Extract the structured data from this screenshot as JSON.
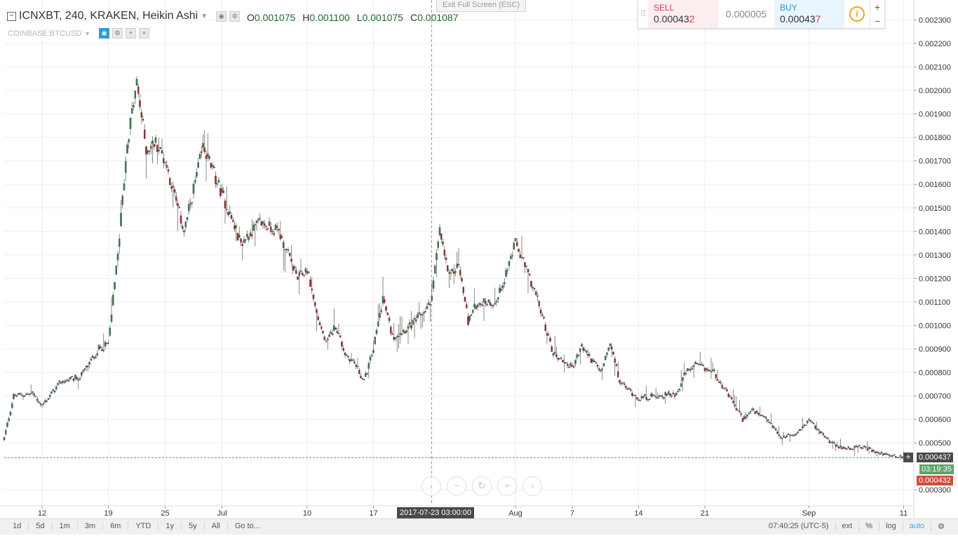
{
  "header": {
    "symbol_line": "ICNXBT, 240, KRAKEN, Heikin Ashi",
    "ohlc": {
      "o_label": "O",
      "o": "0.001075",
      "h_label": "H",
      "h": "0.001100",
      "l_label": "L",
      "l": "0.001075",
      "c_label": "C",
      "c": "0.001087"
    },
    "compare_symbol": "COINBASE:BTCUSD",
    "exit_fullscreen": "Exit Full Screen (ESC)"
  },
  "trade_panel": {
    "sell_label": "SELL",
    "sell_price_main": "0.00043",
    "sell_price_last": "2",
    "spread": "0.000005",
    "buy_label": "BUY",
    "buy_price_main": "0.00043",
    "buy_price_last": "7",
    "info_glyph": "i",
    "plus": "+",
    "minus": "−"
  },
  "price_tags": {
    "current_line": "0.000437",
    "countdown": "03:19:35",
    "bid": "0.000432"
  },
  "crosshair": {
    "x_label": "2017-07-23 03:00:00"
  },
  "bottom_bar": {
    "ranges": [
      "1d",
      "5d",
      "1m",
      "3m",
      "6m",
      "YTD",
      "1y",
      "5y",
      "All",
      "Go to..."
    ],
    "time": "07:40:25 (UTC-5)",
    "options": [
      "ext",
      "%",
      "log",
      "auto"
    ]
  },
  "nav_buttons": [
    "‹",
    "−",
    "↻",
    "+",
    "›"
  ],
  "colors": {
    "up": "#3a7d4a",
    "down": "#a52a2a",
    "grid": "#eeeeee",
    "accent": "#3daee9"
  },
  "chart_data": {
    "type": "candlestick",
    "title": "ICNXBT, 240, KRAKEN, Heikin Ashi",
    "xlabel": "",
    "ylabel": "",
    "ylim": [
      0.000235,
      0.002385
    ],
    "y_tick_labels": [
      "0.002300",
      "0.002200",
      "0.002100",
      "0.002000",
      "0.001900",
      "0.001800",
      "0.001700",
      "0.001600",
      "0.001500",
      "0.001400",
      "0.001300",
      "0.001200",
      "0.001100",
      "0.001000",
      "0.000900",
      "0.000800",
      "0.000700",
      "0.000600",
      "0.000500",
      "0.000300"
    ],
    "x_tick_labels": [
      "12",
      "19",
      "25",
      "Jul",
      "10",
      "17",
      "Aug",
      "7",
      "14",
      "21",
      "Sep",
      "11"
    ],
    "x_tick_dates": [
      "2017-06-12",
      "2017-06-19",
      "2017-06-25",
      "2017-07-01",
      "2017-07-10",
      "2017-07-17",
      "2017-08-01",
      "2017-08-07",
      "2017-08-14",
      "2017-08-21",
      "2017-09-01",
      "2017-09-11"
    ],
    "x_range": [
      "2017-06-08",
      "2017-09-12"
    ],
    "grid": true,
    "series": [
      {
        "key_points": [
          {
            "date": "2017-06-08",
            "close": 0.00052
          },
          {
            "date": "2017-06-09",
            "close": 0.0007
          },
          {
            "date": "2017-06-11",
            "close": 0.00071
          },
          {
            "date": "2017-06-12",
            "close": 0.00066
          },
          {
            "date": "2017-06-14",
            "close": 0.00076
          },
          {
            "date": "2017-06-16",
            "close": 0.00078
          },
          {
            "date": "2017-06-18",
            "close": 0.0009
          },
          {
            "date": "2017-06-19",
            "close": 0.00092
          },
          {
            "date": "2017-06-20",
            "close": 0.0013
          },
          {
            "date": "2017-06-21",
            "close": 0.00178
          },
          {
            "date": "2017-06-22",
            "close": 0.00203
          },
          {
            "date": "2017-06-23",
            "close": 0.00175
          },
          {
            "date": "2017-06-24",
            "close": 0.00178
          },
          {
            "date": "2017-06-25",
            "close": 0.0017
          },
          {
            "date": "2017-06-27",
            "close": 0.0014
          },
          {
            "date": "2017-06-29",
            "close": 0.00176
          },
          {
            "date": "2017-07-01",
            "close": 0.00156
          },
          {
            "date": "2017-07-03",
            "close": 0.00135
          },
          {
            "date": "2017-07-05",
            "close": 0.00144
          },
          {
            "date": "2017-07-07",
            "close": 0.0014
          },
          {
            "date": "2017-07-08",
            "close": 0.0013
          },
          {
            "date": "2017-07-09",
            "close": 0.0012
          },
          {
            "date": "2017-07-10",
            "close": 0.00124
          },
          {
            "date": "2017-07-11",
            "close": 0.00105
          },
          {
            "date": "2017-07-12",
            "close": 0.00092
          },
          {
            "date": "2017-07-13",
            "close": 0.001
          },
          {
            "date": "2017-07-14",
            "close": 0.00088
          },
          {
            "date": "2017-07-15",
            "close": 0.00084
          },
          {
            "date": "2017-07-16",
            "close": 0.00076
          },
          {
            "date": "2017-07-17",
            "close": 0.0009
          },
          {
            "date": "2017-07-18",
            "close": 0.00112
          },
          {
            "date": "2017-07-19",
            "close": 0.00095
          },
          {
            "date": "2017-07-21",
            "close": 0.001
          },
          {
            "date": "2017-07-23",
            "close": 0.00109
          },
          {
            "date": "2017-07-24",
            "close": 0.0014
          },
          {
            "date": "2017-07-25",
            "close": 0.0012
          },
          {
            "date": "2017-07-26",
            "close": 0.00126
          },
          {
            "date": "2017-07-27",
            "close": 0.00102
          },
          {
            "date": "2017-07-28",
            "close": 0.0011
          },
          {
            "date": "2017-07-30",
            "close": 0.0011
          },
          {
            "date": "2017-08-01",
            "close": 0.00135
          },
          {
            "date": "2017-08-03",
            "close": 0.00115
          },
          {
            "date": "2017-08-05",
            "close": 0.00088
          },
          {
            "date": "2017-08-07",
            "close": 0.00082
          },
          {
            "date": "2017-08-08",
            "close": 0.00091
          },
          {
            "date": "2017-08-10",
            "close": 0.0008
          },
          {
            "date": "2017-08-11",
            "close": 0.00092
          },
          {
            "date": "2017-08-12",
            "close": 0.00076
          },
          {
            "date": "2017-08-14",
            "close": 0.00069
          },
          {
            "date": "2017-08-18",
            "close": 0.00071
          },
          {
            "date": "2017-08-19",
            "close": 0.0008
          },
          {
            "date": "2017-08-20",
            "close": 0.00083
          },
          {
            "date": "2017-08-22",
            "close": 0.0008
          },
          {
            "date": "2017-08-25",
            "close": 0.0006
          },
          {
            "date": "2017-08-26",
            "close": 0.00064
          },
          {
            "date": "2017-08-28",
            "close": 0.00058
          },
          {
            "date": "2017-08-29",
            "close": 0.00052
          },
          {
            "date": "2017-08-31",
            "close": 0.00055
          },
          {
            "date": "2017-09-01",
            "close": 0.0006
          },
          {
            "date": "2017-09-02",
            "close": 0.00055
          },
          {
            "date": "2017-09-04",
            "close": 0.00048
          },
          {
            "date": "2017-09-07",
            "close": 0.00048
          },
          {
            "date": "2017-09-08",
            "close": 0.00046
          },
          {
            "date": "2017-09-11",
            "close": 0.000437
          }
        ]
      }
    ],
    "current_price": 0.000437,
    "crosshair_date": "2017-07-23"
  }
}
